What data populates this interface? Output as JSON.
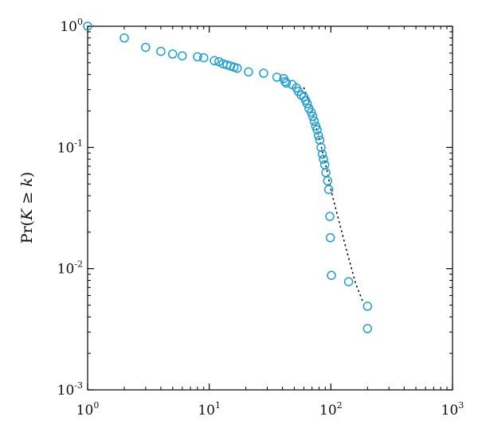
{
  "chart_data": {
    "type": "scatter",
    "title": "",
    "xlabel": "",
    "ylabel": {
      "pre": "Pr(",
      "v1": "K",
      "op": " ≥ ",
      "v2": "k",
      "post": ")"
    },
    "x_scale": "log",
    "y_scale": "log",
    "xlim": [
      1,
      1000
    ],
    "ylim": [
      0.001,
      1
    ],
    "grid": false,
    "x_ticks": [
      {
        "value": 1,
        "base": "10",
        "exp": "0"
      },
      {
        "value": 10,
        "base": "10",
        "exp": "1"
      },
      {
        "value": 100,
        "base": "10",
        "exp": "2"
      },
      {
        "value": 1000,
        "base": "10",
        "exp": "3"
      }
    ],
    "y_ticks": [
      {
        "value": 1,
        "base": "10",
        "exp": "0"
      },
      {
        "value": 0.1,
        "base": "10",
        "exp": "-1"
      },
      {
        "value": 0.01,
        "base": "10",
        "exp": "-2"
      },
      {
        "value": 0.001,
        "base": "10",
        "exp": "-3"
      }
    ],
    "colors": {
      "markers": "#1f9fd6",
      "fit_line": "#000000",
      "axes": "#000000"
    },
    "series": [
      {
        "style": "open-circle",
        "points": [
          [
            1,
            1.0
          ],
          [
            2,
            0.8
          ],
          [
            3,
            0.67
          ],
          [
            4,
            0.62
          ],
          [
            5,
            0.59
          ],
          [
            6,
            0.57
          ],
          [
            8,
            0.56
          ],
          [
            9,
            0.55
          ],
          [
            11,
            0.52
          ],
          [
            12,
            0.51
          ],
          [
            13,
            0.49
          ],
          [
            14,
            0.48
          ],
          [
            15,
            0.47
          ],
          [
            16,
            0.46
          ],
          [
            17,
            0.45
          ],
          [
            21,
            0.42
          ],
          [
            28,
            0.41
          ],
          [
            36,
            0.38
          ],
          [
            41,
            0.37
          ],
          [
            42,
            0.35
          ],
          [
            43,
            0.34
          ],
          [
            48,
            0.33
          ],
          [
            52,
            0.31
          ],
          [
            54,
            0.29
          ],
          [
            57,
            0.27
          ],
          [
            60,
            0.26
          ],
          [
            62,
            0.245
          ],
          [
            64,
            0.23
          ],
          [
            66,
            0.21
          ],
          [
            69,
            0.195
          ],
          [
            71,
            0.18
          ],
          [
            73,
            0.165
          ],
          [
            75,
            0.15
          ],
          [
            77,
            0.14
          ],
          [
            79,
            0.125
          ],
          [
            81,
            0.115
          ],
          [
            83,
            0.1
          ],
          [
            85,
            0.088
          ],
          [
            87,
            0.08
          ],
          [
            89,
            0.072
          ],
          [
            91,
            0.062
          ],
          [
            94,
            0.053
          ],
          [
            96,
            0.045
          ],
          [
            98,
            0.027
          ],
          [
            99,
            0.018
          ],
          [
            101,
            0.0088
          ],
          [
            140,
            0.0078
          ],
          [
            200,
            0.0049
          ],
          [
            200,
            0.0032
          ]
        ]
      },
      {
        "style": "dotted-line",
        "points": [
          [
            60,
            0.31
          ],
          [
            70,
            0.2
          ],
          [
            80,
            0.12
          ],
          [
            90,
            0.075
          ],
          [
            100,
            0.045
          ],
          [
            115,
            0.026
          ],
          [
            135,
            0.014
          ],
          [
            160,
            0.0075
          ],
          [
            185,
            0.0052
          ]
        ]
      }
    ]
  }
}
